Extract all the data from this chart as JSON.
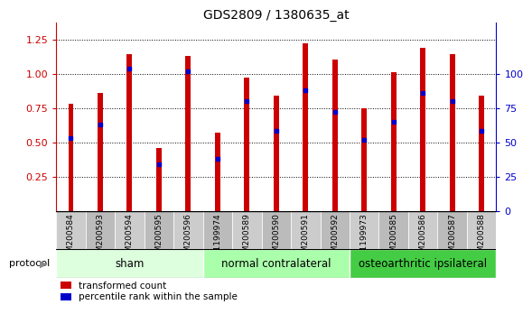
{
  "title": "GDS2809 / 1380635_at",
  "samples": [
    "GSM200584",
    "GSM200593",
    "GSM200594",
    "GSM200595",
    "GSM200596",
    "GSM1199974",
    "GSM200589",
    "GSM200590",
    "GSM200591",
    "GSM200592",
    "GSM1199973",
    "GSM200585",
    "GSM200586",
    "GSM200587",
    "GSM200588"
  ],
  "transformed_count": [
    0.78,
    0.86,
    1.14,
    0.46,
    1.13,
    0.57,
    0.97,
    0.84,
    1.22,
    1.1,
    0.75,
    1.01,
    1.19,
    1.14,
    0.84
  ],
  "percentile_rank": [
    0.53,
    0.63,
    1.04,
    0.34,
    1.02,
    0.38,
    0.8,
    0.58,
    0.88,
    0.72,
    0.52,
    0.65,
    0.86,
    0.8,
    0.58
  ],
  "groups": [
    {
      "label": "sham",
      "start": 0,
      "end": 5,
      "color": "#ddffdd"
    },
    {
      "label": "normal contralateral",
      "start": 5,
      "end": 10,
      "color": "#aaffaa"
    },
    {
      "label": "osteoarthritic ipsilateral",
      "start": 10,
      "end": 15,
      "color": "#44cc44"
    }
  ],
  "bar_color": "#cc0000",
  "percentile_color": "#0000cc",
  "bar_width": 0.18,
  "ylim": [
    0.0,
    1.375
  ],
  "yticks_left": [
    0.25,
    0.5,
    0.75,
    1.0,
    1.25
  ],
  "yticks_right": [
    0,
    25,
    50,
    75,
    100
  ],
  "ylim_right": [
    0,
    137.5
  ],
  "grid_color": "black",
  "protocol_label": "protocol",
  "legend_items": [
    {
      "label": "transformed count",
      "color": "#cc0000"
    },
    {
      "label": "percentile rank within the sample",
      "color": "#0000cc"
    }
  ],
  "tick_label_size": 6.5,
  "title_fontsize": 10,
  "yaxis_left_color": "#cc0000",
  "yaxis_right_color": "#0000cc",
  "bg_color": "#ffffff",
  "group_label_fontsize": 8.5,
  "tick_box_color": "#cccccc",
  "tick_box_alt_color": "#bbbbbb"
}
